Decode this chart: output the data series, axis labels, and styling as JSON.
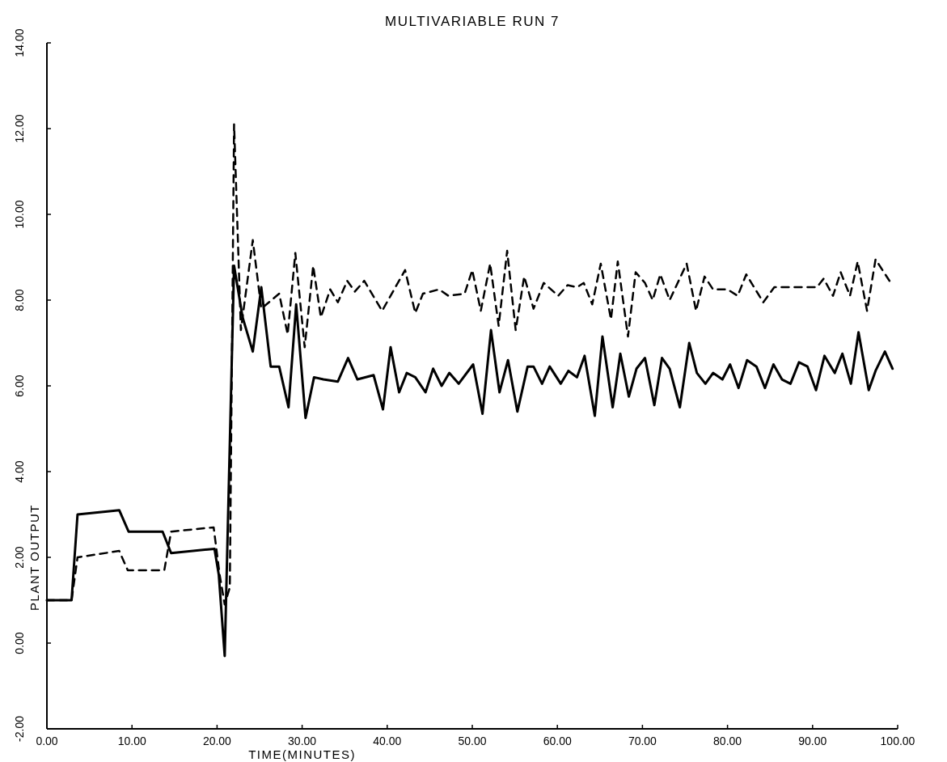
{
  "chart_data": {
    "type": "line",
    "title": "MULTIVARIABLE RUN 7",
    "xlabel": "TIME(MINUTES)",
    "ylabel": "PLANT OUTPUT",
    "xlim": [
      0,
      100
    ],
    "ylim": [
      -2,
      14
    ],
    "xticks": [
      {
        "value": 0,
        "label": "0.00"
      },
      {
        "value": 10,
        "label": "10.00"
      },
      {
        "value": 20,
        "label": "20.00"
      },
      {
        "value": 30,
        "label": "30.00"
      },
      {
        "value": 40,
        "label": "40.00"
      },
      {
        "value": 50,
        "label": "50.00"
      },
      {
        "value": 60,
        "label": "60.00"
      },
      {
        "value": 70,
        "label": "70.00"
      },
      {
        "value": 80,
        "label": "80.00"
      },
      {
        "value": 90,
        "label": "90.00"
      },
      {
        "value": 100,
        "label": "100.00"
      }
    ],
    "yticks": [
      {
        "value": -2,
        "label": "-2.00"
      },
      {
        "value": 0,
        "label": "0.00"
      },
      {
        "value": 2,
        "label": "2.00"
      },
      {
        "value": 4,
        "label": "4.00"
      },
      {
        "value": 6,
        "label": "6.00"
      },
      {
        "value": 8,
        "label": "8.00"
      },
      {
        "value": 10,
        "label": "10.00"
      },
      {
        "value": 12,
        "label": "12.00"
      },
      {
        "value": 14,
        "label": "14.00"
      }
    ],
    "marker": "none",
    "series": [
      {
        "color": "#000000",
        "line_style": "solid",
        "x": [
          0,
          2.9,
          3.6,
          8.5,
          9.6,
          13.6,
          14.6,
          19.7,
          20.2,
          20.9,
          22.0,
          23.0,
          24.2,
          25.2,
          26.3,
          27.3,
          28.4,
          29.3,
          30.4,
          31.4,
          32.5,
          34.2,
          35.4,
          36.5,
          38.4,
          39.5,
          40.4,
          41.4,
          42.3,
          43.3,
          44.5,
          45.4,
          46.4,
          47.3,
          48.4,
          50.1,
          51.2,
          52.2,
          53.2,
          54.2,
          55.3,
          56.5,
          57.2,
          58.2,
          59.1,
          60.4,
          61.3,
          62.3,
          63.2,
          64.4,
          65.3,
          66.5,
          67.4,
          68.4,
          69.3,
          70.3,
          71.4,
          72.3,
          73.2,
          74.4,
          75.5,
          76.4,
          77.4,
          78.3,
          79.4,
          80.3,
          81.3,
          82.3,
          83.4,
          84.4,
          85.4,
          86.4,
          87.4,
          88.4,
          89.4,
          90.4,
          91.4,
          92.6,
          93.5,
          94.5,
          95.4,
          96.6,
          97.4,
          98.5,
          99.4
        ],
        "values": [
          1.0,
          1.0,
          3.0,
          3.1,
          2.6,
          2.6,
          2.1,
          2.2,
          1.6,
          -0.3,
          8.8,
          7.6,
          6.8,
          8.3,
          6.45,
          6.45,
          5.5,
          7.9,
          5.25,
          6.2,
          6.15,
          6.1,
          6.65,
          6.15,
          6.25,
          5.45,
          6.9,
          5.85,
          6.3,
          6.2,
          5.85,
          6.4,
          6.0,
          6.3,
          6.05,
          6.5,
          5.35,
          7.3,
          5.85,
          6.6,
          5.4,
          6.45,
          6.45,
          6.05,
          6.45,
          6.05,
          6.35,
          6.2,
          6.7,
          5.3,
          7.15,
          5.5,
          6.75,
          5.75,
          6.4,
          6.65,
          5.55,
          6.65,
          6.4,
          5.5,
          7.0,
          6.3,
          6.05,
          6.3,
          6.15,
          6.5,
          5.95,
          6.6,
          6.45,
          5.95,
          6.5,
          6.15,
          6.05,
          6.55,
          6.45,
          5.9,
          6.7,
          6.3,
          6.75,
          6.05,
          7.25,
          5.9,
          6.35,
          6.8,
          6.4
        ]
      },
      {
        "color": "#000000",
        "line_style": "dashed",
        "x": [
          0,
          2.9,
          3.6,
          8.5,
          9.5,
          13.8,
          14.6,
          19.6,
          20.3,
          20.9,
          21.5,
          22.0,
          22.8,
          24.2,
          25.2,
          27.3,
          28.3,
          29.2,
          30.3,
          31.3,
          32.2,
          33.3,
          34.2,
          35.3,
          36.2,
          37.3,
          39.4,
          42.1,
          43.3,
          44.2,
          46.1,
          47.2,
          49.1,
          50.0,
          51.0,
          52.1,
          53.1,
          54.1,
          55.1,
          56.1,
          57.2,
          58.4,
          60.1,
          61.2,
          62.3,
          63.1,
          64.1,
          65.1,
          66.3,
          67.1,
          68.3,
          69.2,
          70.3,
          71.2,
          72.1,
          73.2,
          75.2,
          76.3,
          77.3,
          78.3,
          80.0,
          81.2,
          82.2,
          84.2,
          85.5,
          90.5,
          91.3,
          92.4,
          93.3,
          94.4,
          95.3,
          96.4,
          97.4,
          99.2
        ],
        "values": [
          1.0,
          1.0,
          2.0,
          2.15,
          1.7,
          1.7,
          2.6,
          2.7,
          1.6,
          0.9,
          1.3,
          12.1,
          7.3,
          9.4,
          7.8,
          8.15,
          7.2,
          9.1,
          6.9,
          8.8,
          7.6,
          8.25,
          7.95,
          8.45,
          8.2,
          8.45,
          7.75,
          8.7,
          7.7,
          8.15,
          8.25,
          8.1,
          8.15,
          8.7,
          7.75,
          8.85,
          7.4,
          9.15,
          7.3,
          8.55,
          7.8,
          8.4,
          8.1,
          8.35,
          8.3,
          8.4,
          7.9,
          8.85,
          7.55,
          8.9,
          7.15,
          8.65,
          8.4,
          8.0,
          8.6,
          8.0,
          8.85,
          7.75,
          8.55,
          8.25,
          8.25,
          8.1,
          8.6,
          7.95,
          8.3,
          8.3,
          8.5,
          8.1,
          8.65,
          8.1,
          8.9,
          7.75,
          8.95,
          8.4
        ]
      }
    ]
  }
}
